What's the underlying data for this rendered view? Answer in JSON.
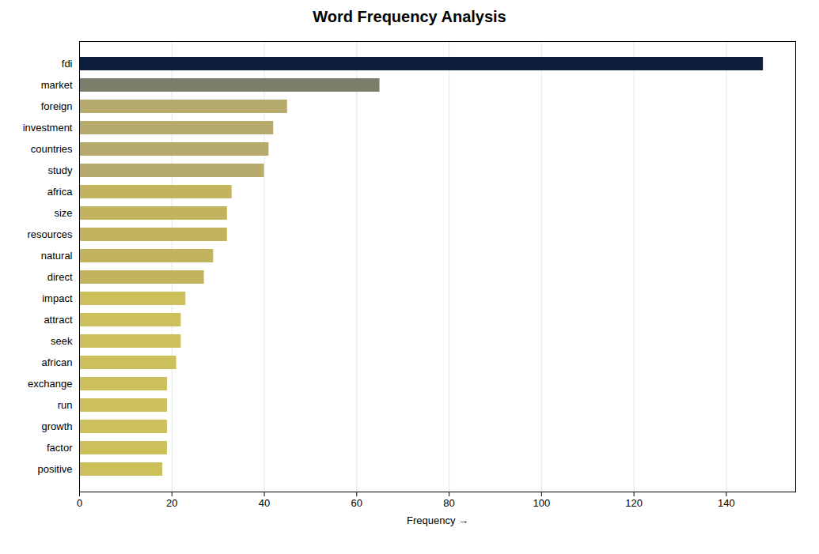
{
  "chart_data": {
    "type": "bar",
    "orientation": "horizontal",
    "title": "Word Frequency Analysis",
    "xlabel": "Frequency",
    "categories": [
      "fdi",
      "market",
      "foreign",
      "investment",
      "countries",
      "study",
      "africa",
      "size",
      "resources",
      "natural",
      "direct",
      "impact",
      "attract",
      "seek",
      "african",
      "exchange",
      "run",
      "growth",
      "factor",
      "positive"
    ],
    "values": [
      148,
      65,
      45,
      42,
      41,
      40,
      33,
      32,
      32,
      29,
      27,
      23,
      22,
      22,
      21,
      19,
      19,
      19,
      19,
      18
    ],
    "colors": [
      "#0d1f3c",
      "#7d7d6b",
      "#b5a96b",
      "#b5a96b",
      "#b5a96b",
      "#b5a96b",
      "#c2b45e",
      "#c2b45e",
      "#c2b45e",
      "#c2b45e",
      "#c2b45e",
      "#ccc05a",
      "#ccc05a",
      "#ccc05a",
      "#ccc05a",
      "#ccc05a",
      "#ccc05a",
      "#ccc05a",
      "#ccc05a",
      "#ccc05a"
    ],
    "xlim": [
      0,
      155
    ],
    "xticks": [
      0,
      20,
      40,
      60,
      80,
      100,
      120,
      140
    ],
    "grid": true
  }
}
